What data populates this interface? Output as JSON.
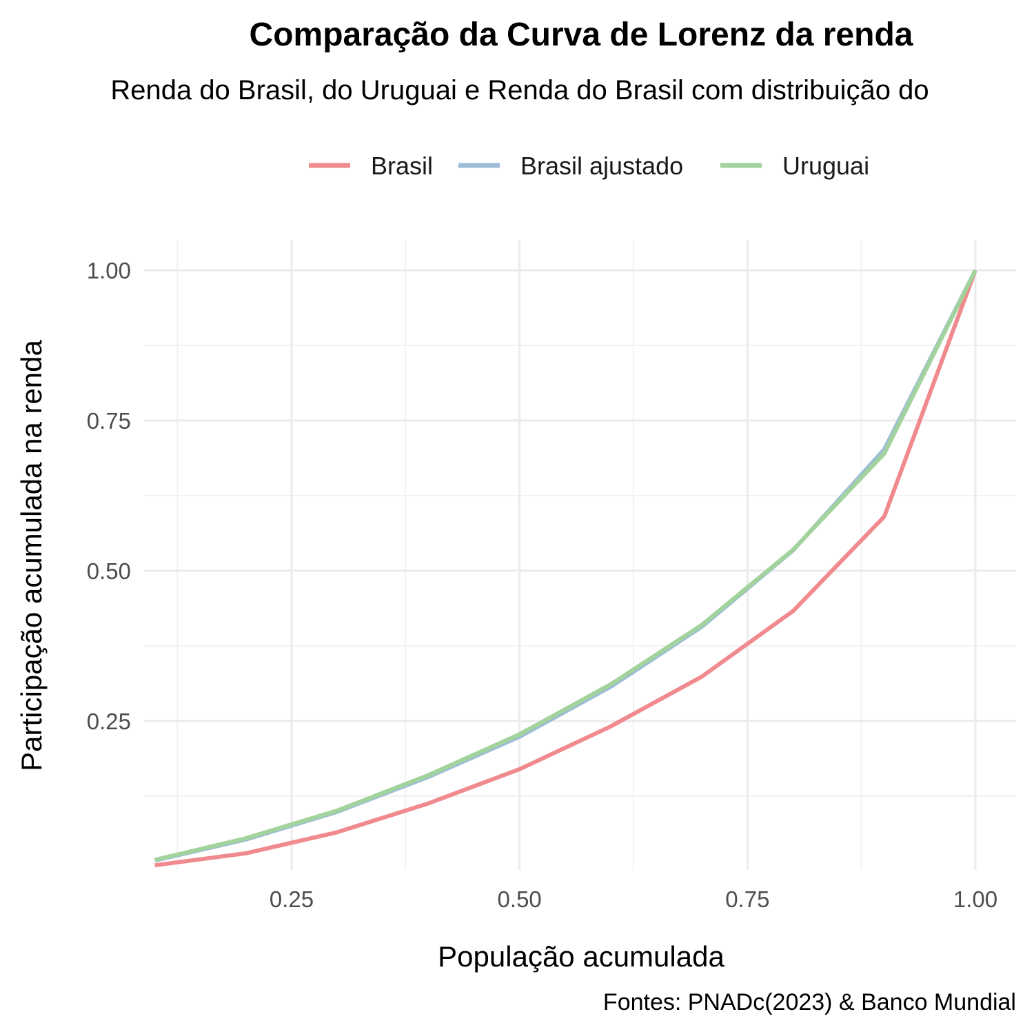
{
  "chart_data": {
    "type": "line",
    "title": "Comparação da Curva de Lorenz da renda",
    "subtitle": "Renda do Brasil, do Uruguai e Renda do Brasil com distribuição do",
    "xlabel": "População acumulada",
    "ylabel": "Participação acumulada na renda",
    "caption": "Fontes: PNADc(2023) & Banco Mundial",
    "xlim": [
      0.1,
      1.0
    ],
    "ylim": [
      0.01,
      1.0
    ],
    "x_ticks": [
      0.25,
      0.5,
      0.75,
      1.0
    ],
    "x_tick_labels": [
      "0.25",
      "0.50",
      "0.75",
      "1.00"
    ],
    "y_ticks": [
      0.25,
      0.5,
      0.75,
      1.0
    ],
    "y_tick_labels": [
      "0.25",
      "0.50",
      "0.75",
      "1.00"
    ],
    "grid": true,
    "legend_position": "top",
    "x": [
      0.1,
      0.2,
      0.3,
      0.4,
      0.5,
      0.6,
      0.7,
      0.8,
      0.9,
      1.0
    ],
    "series": [
      {
        "name": "Brasil",
        "color": "#F08A8E",
        "values": [
          0.01,
          0.03,
          0.065,
          0.113,
          0.17,
          0.241,
          0.324,
          0.433,
          0.59,
          1.0
        ]
      },
      {
        "name": "Brasil ajustado",
        "color": "#9DBDD8",
        "values": [
          0.018,
          0.053,
          0.099,
          0.157,
          0.224,
          0.307,
          0.407,
          0.534,
          0.702,
          1.0
        ]
      },
      {
        "name": "Uruguai",
        "color": "#A3D39C",
        "values": [
          0.019,
          0.055,
          0.101,
          0.16,
          0.228,
          0.311,
          0.41,
          0.535,
          0.695,
          1.0
        ]
      }
    ]
  }
}
